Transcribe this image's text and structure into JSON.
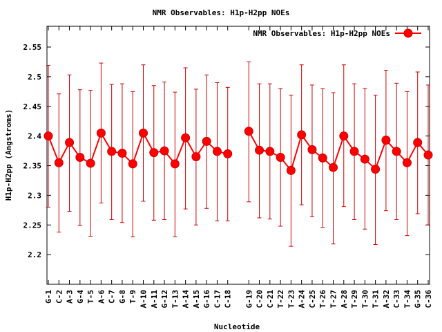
{
  "chart_data": {
    "type": "line",
    "title": "NMR Observables: H1p-H2pp NOEs",
    "xlabel": "Nucleotide",
    "ylabel": "H1p-H2pp (Angstroms)",
    "ylim": [
      2.15,
      2.585
    ],
    "yticks": [
      2.2,
      2.25,
      2.3,
      2.35,
      2.4,
      2.45,
      2.5,
      2.55
    ],
    "grid": false,
    "legend_position": "top-right",
    "series_color": "#ff0000",
    "error_color": "#cc0000",
    "series": [
      {
        "name": "NMR Observables: H1p-H2pp NOEs",
        "segments": [
          {
            "categories": [
              "G-1",
              "C-2",
              "A-3",
              "G-4",
              "T-5",
              "A-6",
              "C-7",
              "G-8",
              "T-9",
              "A-10",
              "A-11",
              "G-12",
              "T-13",
              "A-14",
              "A-15",
              "G-16",
              "C-17",
              "C-18"
            ],
            "values": [
              2.4,
              2.355,
              2.389,
              2.364,
              2.354,
              2.405,
              2.374,
              2.371,
              2.353,
              2.405,
              2.372,
              2.375,
              2.353,
              2.397,
              2.365,
              2.391,
              2.374,
              2.37
            ],
            "err_low": [
              2.28,
              2.238,
              2.273,
              2.249,
              2.231,
              2.287,
              2.259,
              2.254,
              2.23,
              2.29,
              2.258,
              2.259,
              2.23,
              2.277,
              2.25,
              2.278,
              2.257,
              2.257
            ],
            "err_high": [
              2.519,
              2.471,
              2.503,
              2.478,
              2.477,
              2.523,
              2.487,
              2.488,
              2.475,
              2.52,
              2.485,
              2.491,
              2.474,
              2.515,
              2.479,
              2.503,
              2.49,
              2.482
            ]
          },
          {
            "categories": [
              "G-19",
              "C-20",
              "C-21",
              "T-22",
              "T-23",
              "A-24",
              "C-25",
              "T-26",
              "T-27",
              "A-28",
              "T-29",
              "T-30",
              "T-31",
              "A-32",
              "C-33",
              "T-34",
              "G-35",
              "C-36"
            ],
            "values": [
              2.408,
              2.376,
              2.374,
              2.364,
              2.342,
              2.402,
              2.377,
              2.363,
              2.347,
              2.4,
              2.374,
              2.361,
              2.344,
              2.393,
              2.374,
              2.355,
              2.389,
              2.368
            ],
            "err_low": [
              2.289,
              2.262,
              2.26,
              2.248,
              2.214,
              2.284,
              2.264,
              2.246,
              2.218,
              2.281,
              2.259,
              2.243,
              2.217,
              2.274,
              2.259,
              2.232,
              2.269,
              2.25
            ],
            "err_high": [
              2.525,
              2.488,
              2.488,
              2.48,
              2.469,
              2.52,
              2.486,
              2.48,
              2.473,
              2.52,
              2.488,
              2.48,
              2.469,
              2.511,
              2.489,
              2.475,
              2.508,
              2.486
            ]
          }
        ]
      }
    ]
  }
}
